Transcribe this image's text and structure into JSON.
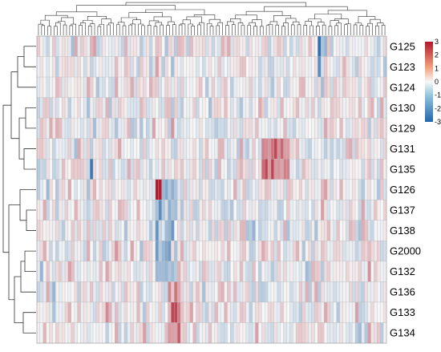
{
  "chart_data": {
    "type": "heatmap",
    "title": "",
    "xlabel": "",
    "ylabel": "",
    "rows": [
      "G125",
      "G123",
      "G124",
      "G130",
      "G129",
      "G131",
      "G135",
      "G126",
      "G137",
      "G138",
      "G2000",
      "G132",
      "G136",
      "G133",
      "G134"
    ],
    "n_columns": 112,
    "color_scale": {
      "min": -3,
      "max": 3,
      "low": "#2166ac",
      "mid": "#f7f7f7",
      "high": "#b2182b"
    },
    "legend_ticks": [
      "3",
      "2",
      "1",
      "0",
      "-1",
      "-2",
      "-3"
    ],
    "row_dendrogram": true,
    "column_dendrogram": true,
    "notable_cells": [
      {
        "row": "G126",
        "column_index": 38,
        "value": 3.1
      },
      {
        "row": "G126",
        "column_index": 39,
        "value": 2.9
      },
      {
        "row": "G125",
        "column_index": 90,
        "value": -2.8
      },
      {
        "row": "G123",
        "column_index": 90,
        "value": -2.2
      },
      {
        "row": "G135",
        "column_index": 17,
        "value": -2.6
      }
    ]
  }
}
